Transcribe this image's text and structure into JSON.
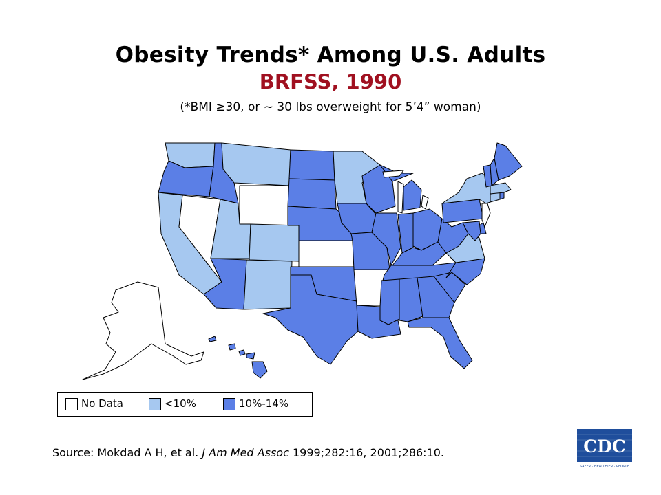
{
  "header": {
    "title": "Obesity Trends* Among U.S. Adults",
    "subtitle": "BRFSS, 1990",
    "note": "(*BMI ≥30, or ~ 30 lbs overweight for 5’4” woman)"
  },
  "colors": {
    "no_data": "#ffffff",
    "lt10": "#a6c8f0",
    "10_14": "#5b7fe6",
    "subtitle": "#a01020",
    "border": "#000000",
    "cdc_blue": "#1f4e9c"
  },
  "legend": {
    "items": [
      {
        "key": "no_data",
        "label": "No Data"
      },
      {
        "key": "lt10",
        "label": "<10%"
      },
      {
        "key": "10_14",
        "label": "10%-14%"
      }
    ]
  },
  "map_data": {
    "category_by_state": {
      "WA": "lt10",
      "OR": "10_14",
      "CA": "lt10",
      "NV": "no_data",
      "ID": "10_14",
      "MT": "lt10",
      "WY": "no_data",
      "UT": "lt10",
      "AZ": "10_14",
      "CO": "lt10",
      "NM": "lt10",
      "ND": "10_14",
      "SD": "10_14",
      "NE": "10_14",
      "KS": "no_data",
      "OK": "10_14",
      "TX": "10_14",
      "MN": "lt10",
      "IA": "10_14",
      "MO": "10_14",
      "AR": "no_data",
      "LA": "10_14",
      "WI": "10_14",
      "IL": "10_14",
      "MI": "10_14",
      "IN": "10_14",
      "OH": "10_14",
      "KY": "10_14",
      "TN": "10_14",
      "MS": "10_14",
      "AL": "10_14",
      "GA": "10_14",
      "FL": "10_14",
      "SC": "10_14",
      "NC": "10_14",
      "VA": "lt10",
      "WV": "10_14",
      "PA": "10_14",
      "NY": "lt10",
      "NJ": "no_data",
      "DE": "10_14",
      "MD": "10_14",
      "CT": "lt10",
      "RI": "10_14",
      "MA": "lt10",
      "VT": "10_14",
      "NH": "10_14",
      "ME": "10_14",
      "AK": "no_data",
      "HI": "10_14"
    }
  },
  "footer": {
    "source_prefix": "Source: Mokdad A H, et al. ",
    "source_journal": "J Am Med Assoc",
    "source_suffix": " 1999;282:16, 2001;286:10.",
    "logo_text": "CDC",
    "logo_tagline": "SAFER · HEALTHIER · PEOPLE"
  }
}
